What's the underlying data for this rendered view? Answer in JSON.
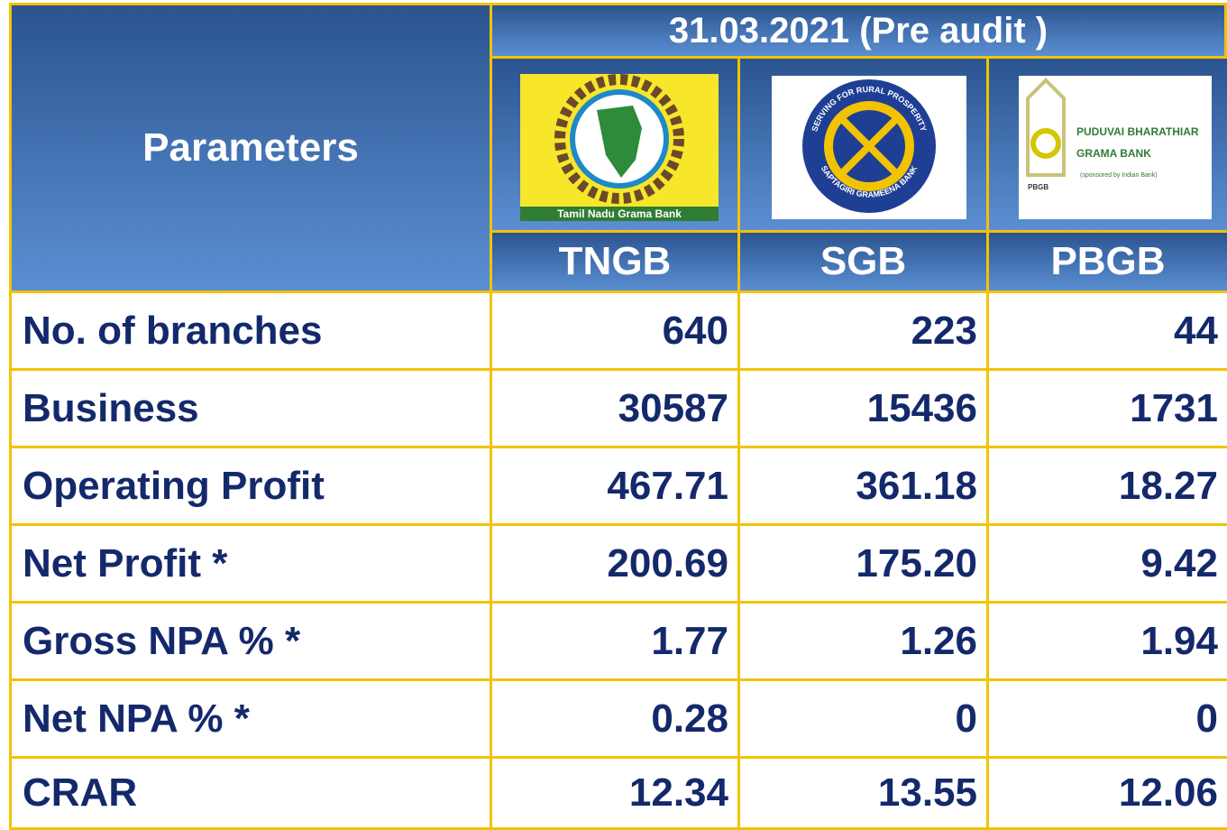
{
  "header": {
    "parameters": "Parameters",
    "period": "31.03.2021 (Pre audit )",
    "banks": [
      {
        "code": "TNGB",
        "logo_text": [
          "Tamil Nadu Grama Bank"
        ]
      },
      {
        "code": "SGB",
        "logo_text": [
          "SERVING FOR RURAL PROSPERITY",
          "SAPTAGIRI GRAMEENA BANK"
        ]
      },
      {
        "code": "PBGB",
        "logo_text": [
          "PUDUVAI BHARATHIAR",
          "GRAMA BANK",
          "(sponsored by Indian Bank)",
          "PBGB"
        ]
      }
    ]
  },
  "table": {
    "rows": [
      [
        "No. of branches",
        "640",
        "223",
        "44"
      ],
      [
        "Business",
        "30587",
        "15436",
        "1731"
      ],
      [
        "Operating Profit",
        "467.71",
        "361.18",
        "18.27"
      ],
      [
        "Net Profit *",
        "200.69",
        "175.20",
        "9.42"
      ],
      [
        "Gross NPA % *",
        "1.77",
        "1.26",
        "1.94"
      ],
      [
        "Net NPA % *",
        "0.28",
        "0",
        "0"
      ],
      [
        "CRAR",
        "12.34",
        "13.55",
        "12.06"
      ]
    ]
  }
}
